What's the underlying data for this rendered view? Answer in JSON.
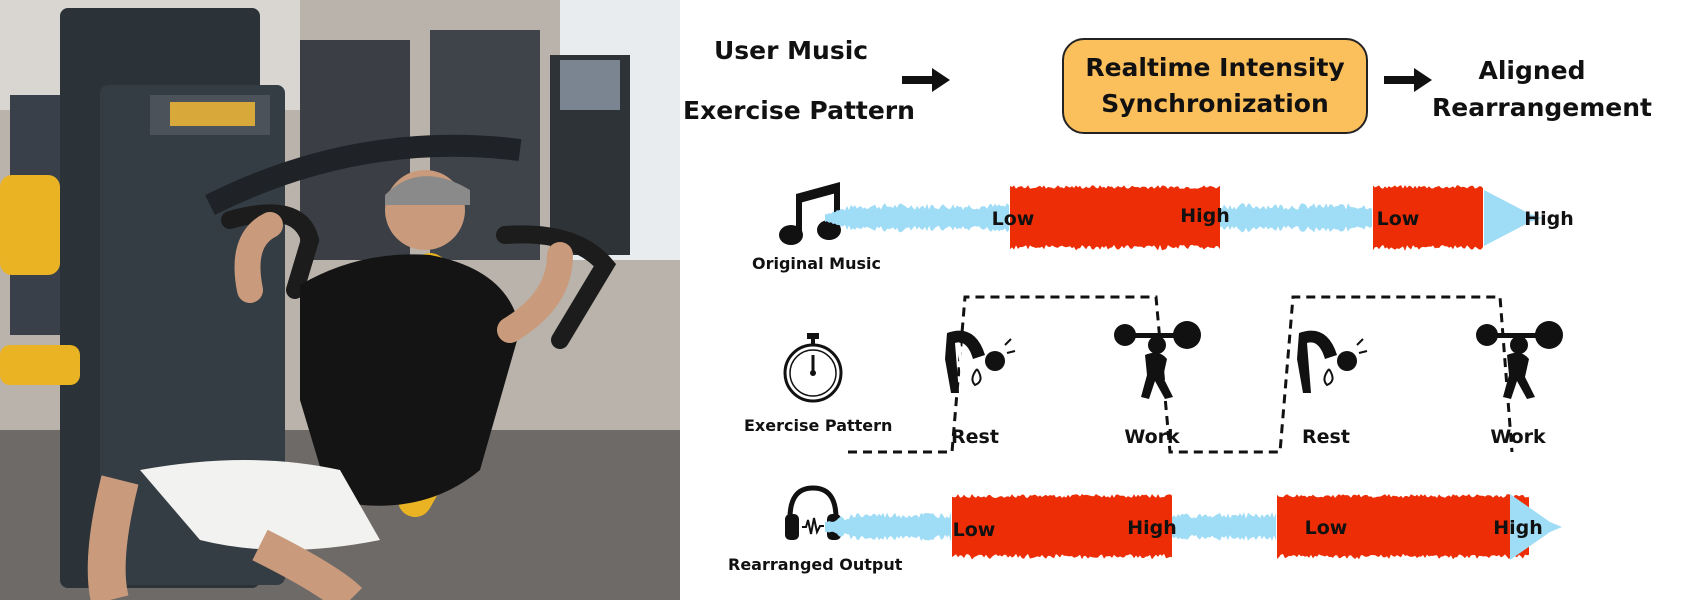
{
  "header": {
    "input_music": "User Music",
    "input_exercise": "Exercise Pattern",
    "process_line1": "Realtime Intensity",
    "process_line2": "Synchronization",
    "output_line1": "Aligned",
    "output_line2": "Rearrangement"
  },
  "rows": {
    "original_music": "Original Music",
    "exercise_pattern": "Exercise Pattern",
    "rearranged_output": "Rearranged Output"
  },
  "original_segments": [
    {
      "label": "Low",
      "intensity": "low"
    },
    {
      "label": "High",
      "intensity": "high"
    },
    {
      "label": "Low",
      "intensity": "low"
    },
    {
      "label": "High",
      "intensity": "high"
    }
  ],
  "exercise_phases": [
    {
      "label": "Rest",
      "state": "rest"
    },
    {
      "label": "Work",
      "state": "work"
    },
    {
      "label": "Rest",
      "state": "rest"
    },
    {
      "label": "Work",
      "state": "work"
    }
  ],
  "rearranged_segments": [
    {
      "label": "Low",
      "intensity": "low"
    },
    {
      "label": "High",
      "intensity": "high"
    },
    {
      "label": "Low",
      "intensity": "low"
    },
    {
      "label": "High",
      "intensity": "high"
    }
  ],
  "colors": {
    "low": "#9fdcf6",
    "high": "#ec2d05",
    "box": "#fbbf5c"
  }
}
